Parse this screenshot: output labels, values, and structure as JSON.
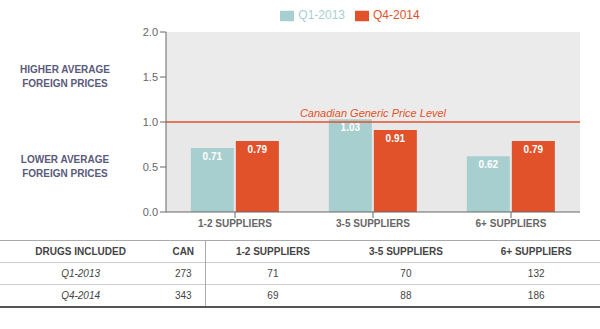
{
  "chart_data": {
    "type": "bar",
    "categories": [
      "1-2 SUPPLIERS",
      "3-5 SUPPLIERS",
      "6+ SUPPLIERS"
    ],
    "series": [
      {
        "name": "Q1-2013",
        "color": "#a8cfd0",
        "values": [
          0.71,
          1.03,
          0.62
        ]
      },
      {
        "name": "Q4-2014",
        "color": "#e2522a",
        "values": [
          0.79,
          0.91,
          0.79
        ]
      }
    ],
    "ylim": [
      0.0,
      2.0
    ],
    "yticks": [
      {
        "value": 0.0,
        "label": "0.0"
      },
      {
        "value": 0.5,
        "label": "0.5"
      },
      {
        "value": 1.0,
        "label": "1.0"
      },
      {
        "value": 1.5,
        "label": "1.5"
      },
      {
        "value": 2.0,
        "label": "2.0"
      }
    ],
    "data_labels": true,
    "legend": "top",
    "grid": false,
    "reference_line": {
      "value": 1.0,
      "label": "Canadian Generic Price Level",
      "color": "#e2522a"
    },
    "bands": [
      {
        "from": 1.0,
        "to": 2.0,
        "color": "#ebebeb",
        "label": "HIGHER AVERAGE\nFOREIGN PRICES"
      },
      {
        "from": 0.0,
        "to": 1.0,
        "color": "#e8e8e8",
        "label": "LOWER AVERAGE\nFOREIGN PRICES"
      }
    ],
    "table": {
      "header": [
        "DRUGS INCLUDED",
        "CAN",
        "1-2 SUPPLIERS",
        "3-5 SUPPLIERS",
        "6+ SUPPLIERS"
      ],
      "rows": [
        {
          "label": "Q1-2013",
          "values": [
            273,
            71,
            70,
            132
          ]
        },
        {
          "label": "Q4-2014",
          "values": [
            343,
            69,
            88,
            186
          ]
        }
      ]
    }
  }
}
